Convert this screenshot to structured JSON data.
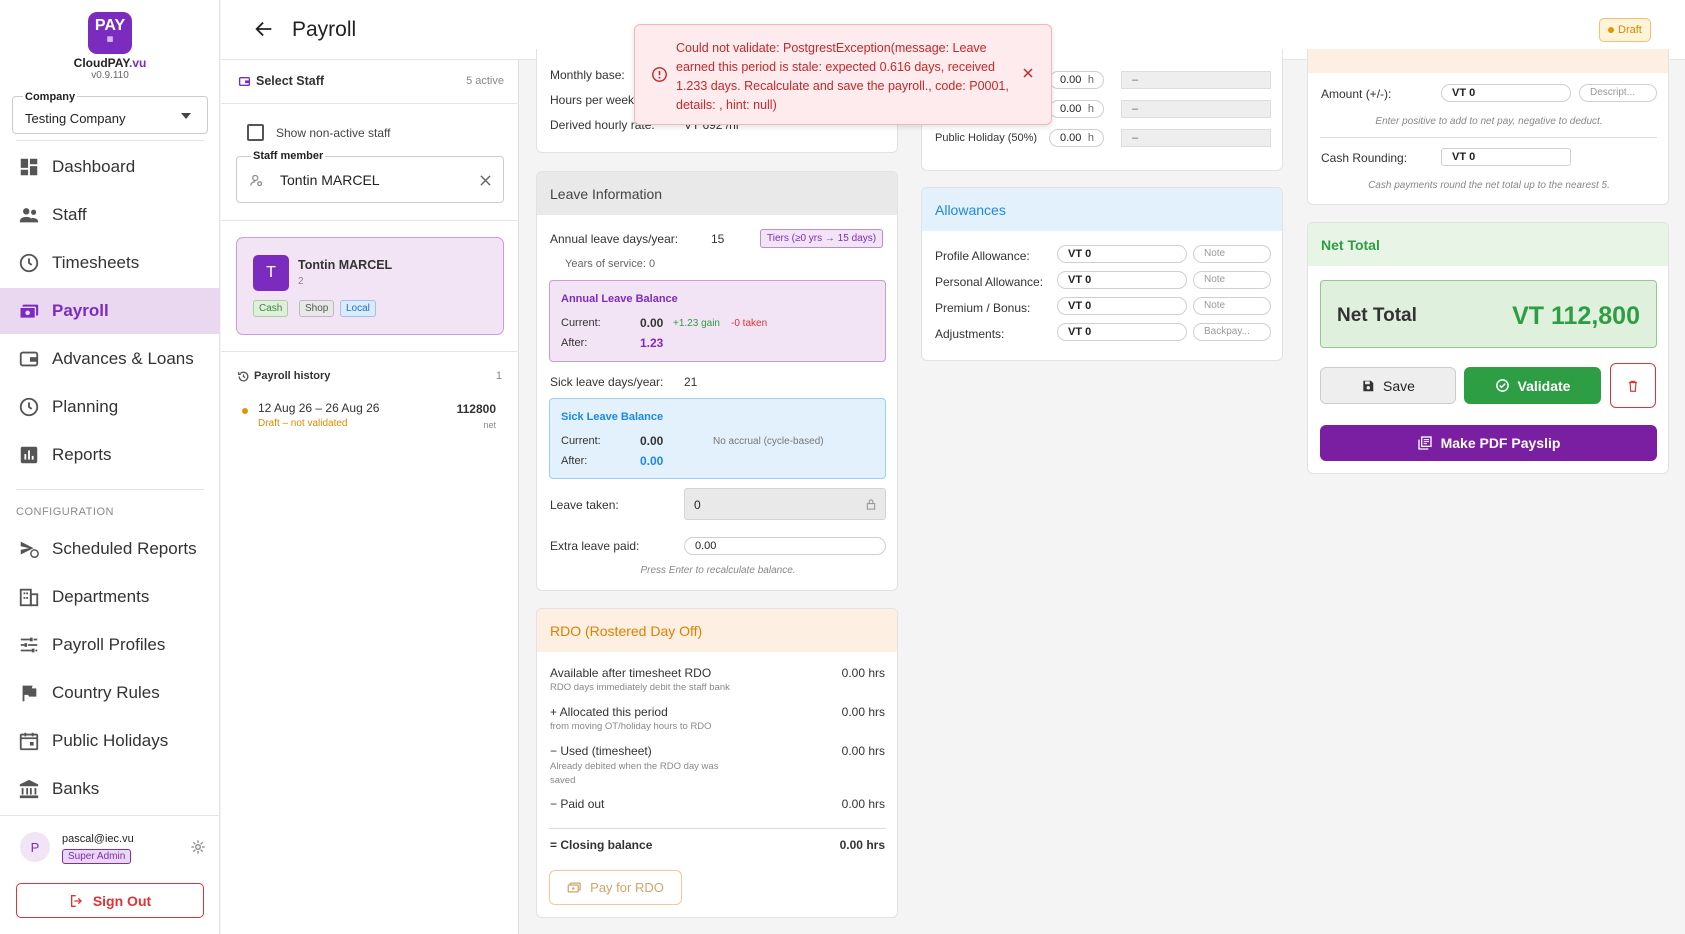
{
  "brand": {
    "logo_text": "PAY",
    "name_a": "CloudPAY",
    "name_b": ".vu",
    "version": "v0.9.110"
  },
  "company": {
    "label": "Company",
    "value": "Testing Company"
  },
  "nav": [
    "Dashboard",
    "Staff",
    "Timesheets",
    "Payroll",
    "Advances & Loans",
    "Planning",
    "Reports"
  ],
  "config": {
    "label": "CONFIGURATION",
    "items": [
      "Scheduled Reports",
      "Departments",
      "Payroll Profiles",
      "Country Rules",
      "Public Holidays",
      "Banks"
    ]
  },
  "user": {
    "initial": "P",
    "email": "pascal@iec.vu",
    "role": "Super Admin",
    "sign_out": "Sign Out"
  },
  "page": {
    "title": "Payroll",
    "status": "Draft"
  },
  "select_staff": {
    "title": "Select Staff",
    "active": "5 active",
    "show_nonactive": "Show non-active staff",
    "staff_label": "Staff member",
    "staff_value": "Tontin MARCEL"
  },
  "staff_card": {
    "initial": "T",
    "name": "Tontin MARCEL",
    "sub": "2",
    "tags": [
      "Cash",
      "Shop",
      "Local"
    ]
  },
  "history": {
    "title": "Payroll history",
    "count": "1",
    "items": [
      {
        "range": "12 Aug 26 – 26 Aug 26",
        "status": "Draft – not validated",
        "amount": "112800",
        "net": "net"
      }
    ]
  },
  "rates": {
    "monthly_base": "Monthly base:",
    "hours_per_week": "Hours per week",
    "derived": "Derived hourly rate:",
    "derived_value": "VT 692 /hr"
  },
  "overtime": {
    "rows": [
      {
        "label": "",
        "value": "0.00",
        "unit": "h",
        "amount": "–"
      },
      {
        "label": "",
        "value": "0.00",
        "unit": "h",
        "amount": "–"
      },
      {
        "label": "Public Holiday (50%)",
        "value": "0.00",
        "unit": "h",
        "amount": "–"
      }
    ]
  },
  "leave": {
    "title": "Leave Information",
    "annual_label": "Annual leave days/year:",
    "annual_value": "15",
    "tier": "Tiers (≥0 yrs → 15 days)",
    "years": "Years of service: 0",
    "annual_balance": {
      "title": "Annual Leave Balance",
      "current_label": "Current:",
      "current": "0.00",
      "gain": "+1.23 gain",
      "taken": "-0 taken",
      "after_label": "After:",
      "after": "1.23"
    },
    "sick_label": "Sick leave days/year:",
    "sick_value": "21",
    "sick_balance": {
      "title": "Sick Leave Balance",
      "current_label": "Current:",
      "current": "0.00",
      "accrual": "No accrual (cycle-based)",
      "after_label": "After:",
      "after": "0.00"
    },
    "taken_label": "Leave taken:",
    "taken_value": "0",
    "extra_label": "Extra leave paid:",
    "extra_value": "0.00",
    "hint": "Press Enter to recalculate balance."
  },
  "rdo": {
    "title": "RDO (Rostered Day Off)",
    "rows": [
      {
        "label": "Available after timesheet RDO",
        "sub": "RDO days immediately debit the staff bank",
        "value": "0.00 hrs"
      },
      {
        "label": "+ Allocated this period",
        "sub": "from moving OT/holiday hours to RDO",
        "value": "0.00 hrs"
      },
      {
        "label": "− Used (timesheet)",
        "sub": "Already debited when the RDO day was saved",
        "value": "0.00 hrs"
      },
      {
        "label": "− Paid out",
        "sub": "",
        "value": "0.00 hrs"
      }
    ],
    "closing_label": "= Closing balance",
    "closing_value": "0.00 hrs",
    "pay_button": "Pay for RDO"
  },
  "allowances": {
    "title": "Allowances",
    "rows": [
      {
        "label": "Profile Allowance:",
        "value": "VT 0",
        "note": "Note"
      },
      {
        "label": "Personal Allowance:",
        "value": "VT 0",
        "note": "Note"
      },
      {
        "label": "Premium / Bonus:",
        "value": "VT 0",
        "note": "Note"
      },
      {
        "label": "Adjustments:",
        "value": "VT 0",
        "note": "Backpay..."
      }
    ]
  },
  "adjust": {
    "amount_label": "Amount (+/-):",
    "amount_value": "VT 0",
    "desc_placeholder": "Descript...",
    "amount_hint": "Enter positive to add to net pay, negative to deduct.",
    "rounding_label": "Cash Rounding:",
    "rounding_value": "VT 0",
    "rounding_hint": "Cash payments round the net total up to the nearest 5."
  },
  "net": {
    "title": "Net Total",
    "label": "Net Total",
    "value": "VT 112,800",
    "save": "Save",
    "validate": "Validate",
    "pdf": "Make PDF Payslip"
  },
  "toast": {
    "message": "Could not validate: PostgrestException(message: Leave earned this period is stale: expected 0.616 days, received 1.233 days. Recalculate and save the payroll., code: P0001, details: , hint: null)"
  },
  "colors": {
    "brand": "#7b2cbf",
    "success": "#2e9e44",
    "error": "#c62828",
    "info": "#1e88e5",
    "warn": "#e69500"
  }
}
